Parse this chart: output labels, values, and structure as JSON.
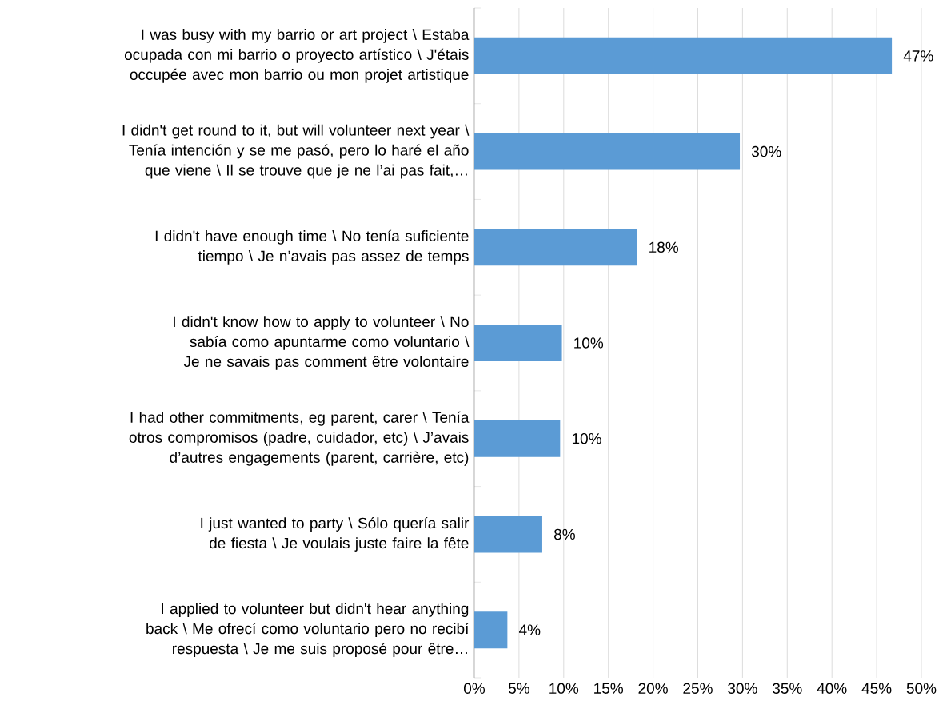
{
  "chart_data": {
    "type": "bar",
    "orientation": "horizontal",
    "categories": [
      "I was busy with my barrio or art project \\ Estaba ocupada con mi barrio o proyecto artístico \\ J'étais occupée avec mon barrio ou mon projet artistique",
      "I didn't get round to it, but will volunteer next year \\ Tenía intención y se me pasó, pero lo haré el año que viene \\ Il se trouve que je ne l’ai pas fait,…",
      "I didn't have enough time \\ No tenía suficiente tiempo \\ Je n’avais pas assez de temps",
      "I didn't know how to apply to volunteer  \\ No sabía como apuntarme como voluntario \\ Je ne savais pas comment être volontaire",
      "I had other commitments, eg parent, carer \\ Tenía otros compromisos (padre, cuidador, etc) \\ J’avais d’autres engagements (parent, carrière, etc)",
      "I just wanted to party \\ Sólo quería salir de fiesta \\ Je voulais juste faire la fête",
      "I applied to volunteer but didn't hear anything back \\ Me ofrecí como voluntario pero no recibí respuesta \\ Je me suis proposé pour être…"
    ],
    "values": [
      46.7,
      29.7,
      18.2,
      9.8,
      9.6,
      7.6,
      3.7
    ],
    "value_labels": [
      "47%",
      "30%",
      "18%",
      "10%",
      "10%",
      "8%",
      "4%"
    ],
    "color": "#5b9bd5",
    "xlim": [
      0,
      50
    ],
    "xticks": [
      {
        "value": 0,
        "label": "0%"
      },
      {
        "value": 5,
        "label": "5%"
      },
      {
        "value": 10,
        "label": "10%"
      },
      {
        "value": 15,
        "label": "15%"
      },
      {
        "value": 20,
        "label": "20%"
      },
      {
        "value": 25,
        "label": "25%"
      },
      {
        "value": 30,
        "label": "30%"
      },
      {
        "value": 35,
        "label": "35%"
      },
      {
        "value": 40,
        "label": "40%"
      },
      {
        "value": 45,
        "label": "45%"
      },
      {
        "value": 50,
        "label": "50%"
      }
    ],
    "grid": "x"
  }
}
